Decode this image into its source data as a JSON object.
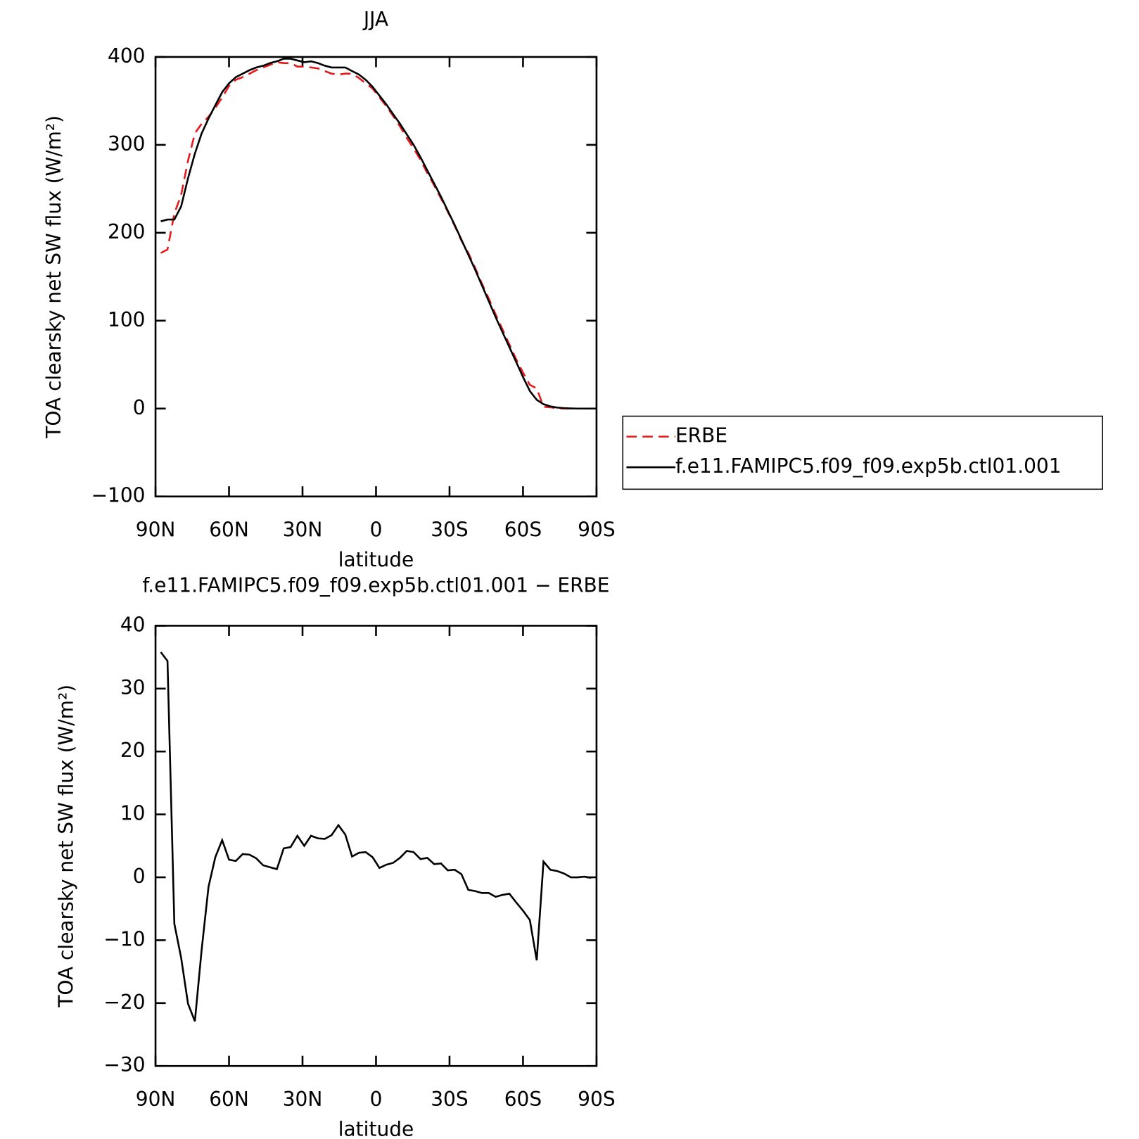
{
  "chart_data": [
    {
      "type": "line",
      "title": "JJA",
      "xlabel": "latitude",
      "ylabel": "TOA clearsky net SW flux (W/m²)",
      "x": [
        87.86,
        85.1,
        82.31,
        79.53,
        76.74,
        73.95,
        71.16,
        68.37,
        65.58,
        62.79,
        60,
        57.21,
        54.42,
        51.63,
        48.84,
        46.04,
        43.25,
        40.46,
        37.67,
        34.88,
        32.09,
        29.3,
        26.51,
        23.72,
        20.93,
        18.14,
        15.35,
        12.56,
        9.77,
        6.98,
        4.19,
        1.4,
        -1.4,
        -4.19,
        -6.98,
        -9.77,
        -12.56,
        -15.35,
        -18.14,
        -20.93,
        -23.72,
        -26.51,
        -29.3,
        -32.09,
        -34.88,
        -37.67,
        -40.46,
        -43.25,
        -46.04,
        -48.84,
        -51.63,
        -54.42,
        -57.21,
        -60,
        -62.79,
        -65.58,
        -68.37,
        -71.16,
        -73.95,
        -76.74,
        -79.53,
        -82.31,
        -85.1,
        -87.86
      ],
      "series": [
        {
          "name": "ERBE",
          "color": "#e41a1c",
          "style": "dashed",
          "values": [
            177,
            181,
            222,
            243,
            282,
            313,
            324,
            332,
            342,
            354,
            367,
            374,
            377,
            381,
            385,
            388,
            391,
            394,
            393,
            393,
            389,
            389,
            388,
            387,
            384,
            381,
            380,
            381,
            381,
            376,
            370,
            364,
            354,
            344,
            333,
            321,
            308,
            296,
            283,
            268,
            254,
            239,
            224,
            208,
            191,
            177,
            160,
            142,
            125,
            107,
            90,
            73,
            56,
            41,
            27,
            23,
            2,
            1.5,
            0.2,
            0,
            0,
            0,
            0,
            0
          ]
        },
        {
          "name": "f.e11.FAMIPC5.f09_f09.exp5b.ctl01.001",
          "color": "#000000",
          "style": "solid",
          "values": [
            213,
            215,
            215,
            230,
            262,
            290,
            313,
            330,
            345,
            360,
            370,
            377,
            381,
            385,
            388,
            390,
            393,
            395,
            398,
            398,
            396,
            394,
            395,
            393,
            390,
            388,
            388,
            388,
            384,
            380,
            374,
            366,
            356,
            346,
            335,
            324,
            312,
            300,
            286,
            271,
            256,
            241,
            225,
            209,
            192,
            175,
            158,
            140,
            122,
            104,
            87,
            70,
            53,
            36,
            20,
            10,
            5,
            2.5,
            1.2,
            0.5,
            0.2,
            0,
            0,
            0
          ]
        }
      ],
      "xlim": [
        90,
        -90
      ],
      "xticks": [
        {
          "value": 90,
          "label": "90N"
        },
        {
          "value": 60,
          "label": "60N"
        },
        {
          "value": 30,
          "label": "30N"
        },
        0,
        {
          "value": -30,
          "label": "30S"
        },
        {
          "value": -60,
          "label": "60S"
        },
        {
          "value": -90,
          "label": "90S"
        }
      ],
      "ylim": [
        -100,
        400
      ],
      "yticks": [
        {
          "value": -100,
          "label": "−100"
        },
        0,
        100,
        200,
        300,
        400
      ],
      "legend": "outside right"
    },
    {
      "type": "line",
      "title": "f.e11.FAMIPC5.f09_f09.exp5b.ctl01.001 − ERBE",
      "xlabel": "latitude",
      "ylabel": "TOA clearsky net SW flux (W/m²)",
      "x": [
        87.86,
        85.1,
        82.31,
        79.53,
        76.74,
        73.95,
        71.16,
        68.37,
        65.58,
        62.79,
        60,
        57.21,
        54.42,
        51.63,
        48.84,
        46.04,
        43.25,
        40.46,
        37.67,
        34.88,
        32.09,
        29.3,
        26.51,
        23.72,
        20.93,
        18.14,
        15.35,
        12.56,
        9.77,
        6.98,
        4.19,
        1.4,
        -1.4,
        -4.19,
        -6.98,
        -9.77,
        -12.56,
        -15.35,
        -18.14,
        -20.93,
        -23.72,
        -26.51,
        -29.3,
        -32.09,
        -34.88,
        -37.67,
        -40.46,
        -43.25,
        -46.04,
        -48.84,
        -51.63,
        -54.42,
        -57.21,
        -60,
        -62.79,
        -65.58,
        -68.37,
        -71.16,
        -73.95,
        -76.74,
        -79.53,
        -82.31,
        -85.1,
        -87.86
      ],
      "values": [
        35.8,
        34.4,
        -7.4,
        -12.8,
        -20.1,
        -22.9,
        -11.5,
        -1.5,
        3.2,
        5.9,
        2.8,
        2.6,
        3.7,
        3.6,
        3,
        1.9,
        1.6,
        1.3,
        4.6,
        4.8,
        6.6,
        5,
        6.6,
        6.2,
        6.1,
        6.7,
        8.3,
        6.8,
        3.3,
        3.9,
        4,
        3.2,
        1.5,
        2,
        2.3,
        3.1,
        4.2,
        4,
        2.9,
        3.1,
        2.1,
        2.2,
        1.1,
        1.2,
        0.5,
        -2,
        -2.2,
        -2.5,
        -2.5,
        -3.1,
        -2.8,
        -2.6,
        -4,
        -5.3,
        -6.8,
        -13.2,
        2.5,
        1.2,
        1,
        0.6,
        0,
        0,
        0.1,
        -0.1
      ],
      "color": "#000000",
      "xlim": [
        90,
        -90
      ],
      "xticks": [
        {
          "value": 90,
          "label": "90N"
        },
        {
          "value": 60,
          "label": "60N"
        },
        {
          "value": 30,
          "label": "30N"
        },
        0,
        {
          "value": -30,
          "label": "30S"
        },
        {
          "value": -60,
          "label": "60S"
        },
        {
          "value": -90,
          "label": "90S"
        }
      ],
      "ylim": [
        -30,
        40
      ],
      "yticks": [
        {
          "value": -30,
          "label": "−30"
        },
        {
          "value": -20,
          "label": "−20"
        },
        {
          "value": -10,
          "label": "−10"
        },
        0,
        10,
        20,
        30,
        40
      ]
    }
  ]
}
